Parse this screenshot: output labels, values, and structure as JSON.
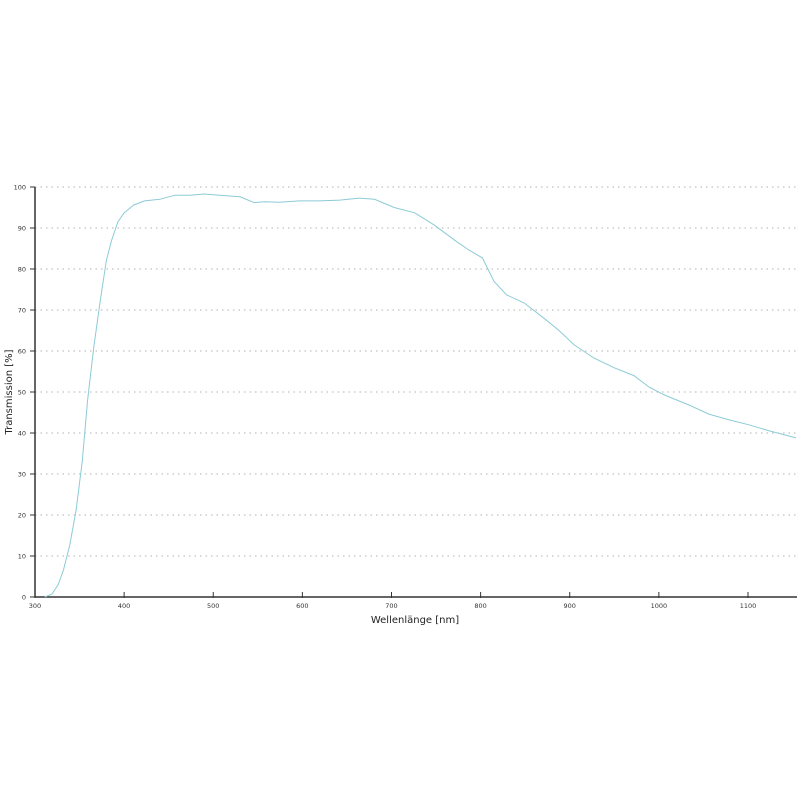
{
  "chart_data": {
    "type": "line",
    "title": "",
    "xlabel": "Wellenlänge [nm]",
    "ylabel": "Transmission [%]",
    "xlim": [
      300,
      1155
    ],
    "ylim": [
      0,
      100
    ],
    "grid": "horizontal dotted",
    "legend": "none",
    "line_color": "#8ccbd6",
    "x_ticks": [
      "300",
      "400",
      "500",
      "600",
      "700",
      "800",
      "900",
      "1000",
      "1100"
    ],
    "y_ticks": [
      "0",
      "10",
      "20",
      "30",
      "40",
      "50",
      "60",
      "70",
      "80",
      "90",
      "100"
    ],
    "series": [
      {
        "x": [
          311,
          319,
          326,
          332,
          339,
          346,
          353,
          359,
          366,
          373,
          380,
          386,
          393,
          400,
          411,
          423,
          440,
          457,
          474,
          490,
          507,
          530,
          546,
          558,
          574,
          597,
          619,
          642,
          664,
          681,
          703,
          726,
          748,
          771,
          787,
          802,
          815,
          829,
          849,
          871,
          888,
          905,
          927,
          950,
          972,
          989,
          1006,
          1034,
          1056,
          1079,
          1101,
          1124,
          1154
        ],
        "y": [
          0,
          0.7,
          3,
          6.6,
          12.7,
          21,
          33,
          48,
          61,
          72,
          82,
          87,
          91.5,
          93.7,
          95.6,
          96.6,
          97,
          98,
          98,
          98.3,
          98,
          97.6,
          96.2,
          96.4,
          96.3,
          96.6,
          96.6,
          96.8,
          97.3,
          97,
          95,
          93.7,
          90.7,
          87,
          84.6,
          82.7,
          77,
          73.7,
          71.7,
          68,
          65,
          61.5,
          58.3,
          55.9,
          54,
          51.2,
          49.3,
          46.8,
          44.6,
          43.2,
          42,
          40.5,
          38.8
        ]
      }
    ]
  }
}
